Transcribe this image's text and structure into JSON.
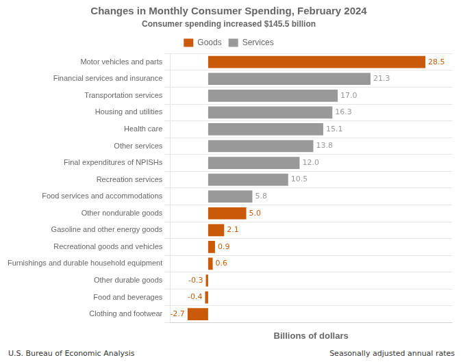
{
  "chart_data": {
    "type": "bar",
    "orientation": "horizontal",
    "title": "Changes in Monthly Consumer Spending, February 2024",
    "subtitle": "Consumer spending increased $145.5 billion",
    "xlabel": "Billions of dollars",
    "annotations": [
      "U.S. Bureau of Economic Analysis",
      "Seasonally adjusted annual rates"
    ],
    "categories": [
      "Motor vehicles and parts",
      "Financial services and insurance",
      "Transportation services",
      "Housing and utilities",
      "Health care",
      "Other services",
      "Final expenditures of NPISHs",
      "Recreation services",
      "Food services and accommodations",
      "Other nondurable goods",
      "Gasoline and other energy goods",
      "Recreational goods and vehicles",
      "Furnishings and durable household equipment",
      "Other durable goods",
      "Food and beverages",
      "Clothing and footwear"
    ],
    "series": [
      {
        "name": "Goods",
        "color": "#C85A0A",
        "values": [
          28.5,
          null,
          null,
          null,
          null,
          null,
          null,
          null,
          null,
          5.0,
          2.1,
          0.9,
          0.6,
          -0.3,
          -0.4,
          -2.7
        ],
        "value_labels": [
          "28.5",
          null,
          null,
          null,
          null,
          null,
          null,
          null,
          null,
          "5.0",
          "2.1",
          "0.9",
          "0.6",
          "-0.3",
          "-0.4",
          "-2.7"
        ]
      },
      {
        "name": "Services",
        "color": "#999999",
        "values": [
          null,
          21.3,
          17.0,
          16.3,
          15.1,
          13.8,
          12.0,
          10.5,
          5.8,
          null,
          null,
          null,
          null,
          null,
          null,
          null
        ],
        "value_labels": [
          null,
          "21.3",
          "17.0",
          "16.3",
          "15.1",
          "13.8",
          "12.0",
          "10.5",
          "5.8",
          null,
          null,
          null,
          null,
          null,
          null,
          null
        ]
      }
    ],
    "xlim": [
      -5,
      32
    ],
    "tick_labels": "y",
    "data_labels": true,
    "grid": true,
    "legend": "top"
  }
}
